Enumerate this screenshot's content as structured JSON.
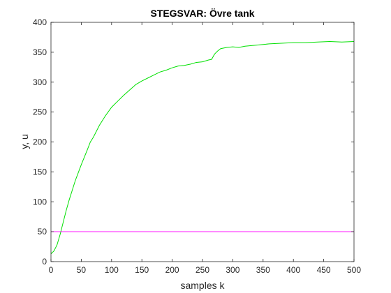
{
  "chart_data": {
    "type": "line",
    "title": "STEGSVAR: Övre tank",
    "xlabel": "samples k",
    "ylabel": "y, u",
    "xlim": [
      0,
      500
    ],
    "ylim": [
      0,
      400
    ],
    "x_ticks": [
      0,
      50,
      100,
      150,
      200,
      250,
      300,
      350,
      400,
      450,
      500
    ],
    "y_ticks": [
      0,
      50,
      100,
      150,
      200,
      250,
      300,
      350,
      400
    ],
    "grid": false,
    "legend": null,
    "series": [
      {
        "color": "#00e000",
        "x": [
          0,
          5,
          10,
          15,
          20,
          25,
          30,
          40,
          50,
          60,
          65,
          70,
          80,
          90,
          100,
          110,
          120,
          130,
          140,
          150,
          160,
          170,
          180,
          190,
          200,
          210,
          220,
          230,
          240,
          250,
          260,
          265,
          270,
          275,
          280,
          290,
          300,
          310,
          320,
          340,
          360,
          380,
          400,
          420,
          440,
          460,
          480,
          500
        ],
        "y": [
          13,
          18,
          28,
          45,
          65,
          85,
          103,
          135,
          162,
          187,
          200,
          208,
          228,
          244,
          258,
          268,
          278,
          287,
          296,
          302,
          307,
          312,
          317,
          320,
          324,
          327,
          328,
          330,
          333,
          334,
          337,
          338,
          347,
          352,
          356,
          358,
          359,
          358,
          360,
          362,
          364,
          365,
          366,
          366,
          367,
          368,
          367,
          368
        ]
      },
      {
        "color": "#ff00ff",
        "x": [
          0,
          500
        ],
        "y": [
          50,
          50
        ]
      }
    ]
  }
}
